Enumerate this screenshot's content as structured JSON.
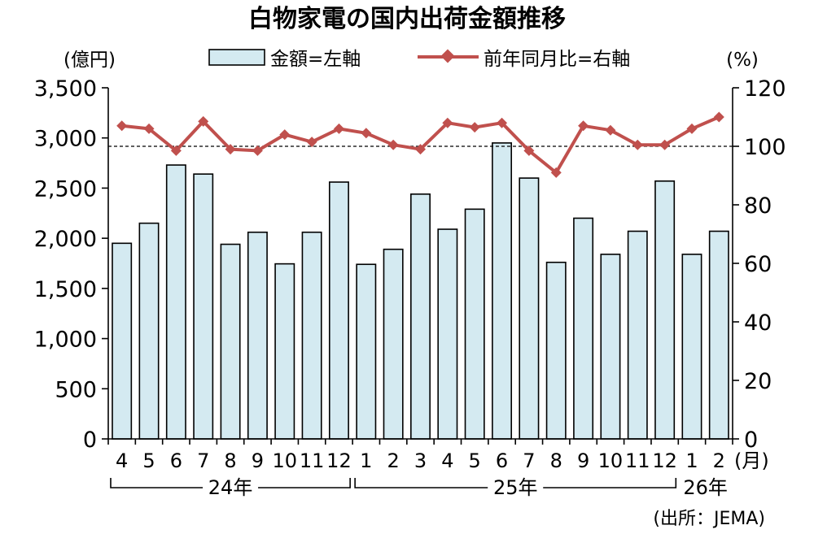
{
  "title": "白物家電の国内出荷金額推移",
  "source": "(出所：JEMA)",
  "colors": {
    "bar_fill": "#d4eaf1",
    "bar_stroke": "#000000",
    "line": "#c0504d"
  },
  "chart_data": {
    "type": "bar+line",
    "categories": [
      "4",
      "5",
      "6",
      "7",
      "8",
      "9",
      "10",
      "11",
      "12",
      "1",
      "2",
      "3",
      "4",
      "5",
      "6",
      "7",
      "8",
      "9",
      "10",
      "11",
      "12",
      "1",
      "2"
    ],
    "month_unit": "(月)",
    "year_groups": [
      {
        "label": "24年",
        "start": 0,
        "end": 8
      },
      {
        "label": "25年",
        "start": 9,
        "end": 20
      },
      {
        "label": "26年",
        "start": 21,
        "end": 22
      }
    ],
    "left_axis": {
      "unit": "(億円)",
      "min": 0,
      "max": 3500,
      "step": 500
    },
    "right_axis": {
      "unit": "(%)",
      "min": 0,
      "max": 120,
      "step": 20,
      "reference_line": 100
    },
    "series": [
      {
        "name": "金額=左軸",
        "type": "bar",
        "axis": "left",
        "values": [
          1950,
          2150,
          2730,
          2640,
          1940,
          2060,
          1745,
          2060,
          2560,
          1740,
          1890,
          2440,
          2090,
          2290,
          2950,
          2600,
          1760,
          2200,
          1840,
          2070,
          2570,
          1840,
          2070
        ]
      },
      {
        "name": "前年同月比=右軸",
        "type": "line",
        "axis": "right",
        "values": [
          107,
          106,
          98.5,
          108.5,
          99,
          98.5,
          104,
          101.5,
          106,
          104.5,
          100.5,
          99,
          108,
          106.5,
          108,
          98.5,
          91,
          107,
          105.5,
          100.5,
          100.5,
          106,
          110
        ]
      }
    ]
  }
}
